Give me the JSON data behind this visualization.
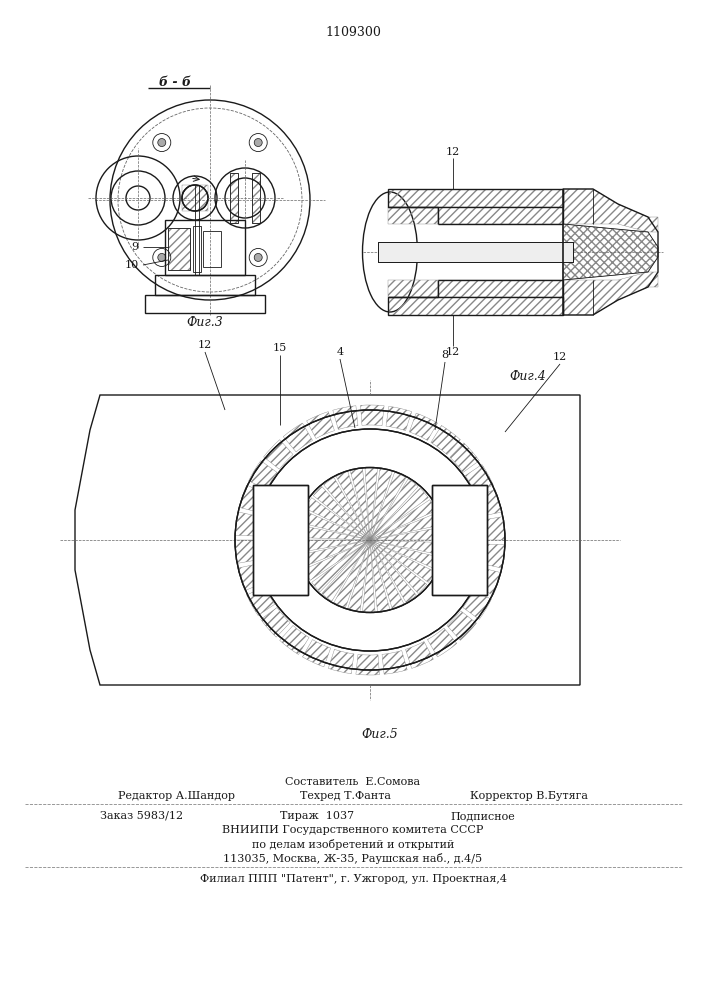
{
  "patent_number": "1109300",
  "fig3_label": "Фиг.3",
  "fig4_label": "Фиг.4",
  "fig5_label": "Фиг.5",
  "section_label": "б - б",
  "footer_line1": "Составитель  Е.Сомова",
  "footer_line2_left": "Редактор А.Шандор",
  "footer_line2_mid": "Техред Т.Фанта",
  "footer_line2_right": "Корректор В.Бутяга",
  "footer_line3_left": "Заказ 5983/12",
  "footer_line3_mid": "Тираж  1037",
  "footer_line3_right": "Подписное",
  "footer_line4": "ВНИИПИ Государственного комитета СССР",
  "footer_line5": "по делам изобретений и открытий",
  "footer_line6": "113035, Москва, Ж-35, Раушская наб., д.4/5",
  "footer_line7": "Филиал ППП \"Патент\", г. Ужгород, ул. Проектная,4",
  "bg_color": "#ffffff",
  "line_color": "#1a1a1a"
}
